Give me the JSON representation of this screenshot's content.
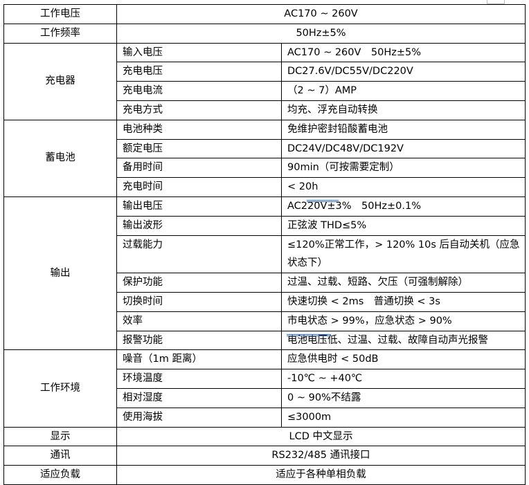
{
  "sections": [
    {
      "type": "row",
      "label": "工作电压",
      "value": "AC170 ~ 260V"
    },
    {
      "type": "row",
      "label": "工作频率",
      "value": "50Hz±5%"
    },
    {
      "type": "group",
      "label": "充电器",
      "items": [
        {
          "label": "输入电压",
          "value": "AC170 ~ 260V　50Hz±5%"
        },
        {
          "label": "充电电压",
          "value": "DC27.6V/DC55V/DC220V"
        },
        {
          "label": "充电电流",
          "value": "（2 ~ 7）AMP"
        },
        {
          "label": "充电方式",
          "value": "均充、浮充自动转换"
        }
      ]
    },
    {
      "type": "group",
      "label": "蓄电池",
      "items": [
        {
          "label": "电池种类",
          "value": "免维护密封铅酸蓄电池"
        },
        {
          "label": "额定电压",
          "value": "DC24V/DC48V/DC192V"
        },
        {
          "label": "备用时间",
          "value": "90min（可按需要定制）"
        },
        {
          "label": "充电时间",
          "value": "< 20h"
        }
      ]
    },
    {
      "type": "group",
      "label": "输出",
      "items": [
        {
          "label": "输出电压",
          "value": "AC220V±3%　50Hz±0.1%",
          "underline": "　50"
        },
        {
          "label": "输出波形",
          "value": "正弦波 THD≤5%"
        },
        {
          "label": "过载能力",
          "value": "≤120%正常工作，> 120% 10s 后自动关机（应急状态下）",
          "wrap": true
        },
        {
          "label": "保护功能",
          "value": "过温、过载、短路、欠压（可强制解除）"
        },
        {
          "label": "切换时间",
          "value": "快速切换 < 2ms　普通切换 < 3s"
        },
        {
          "label": "效率",
          "value": "市电状态 > 99%，应急状态 > 90%"
        },
        {
          "label": "报警功能",
          "value": "电池电压低、过温、过载、故障自动声光报警",
          "underline": "电池电压"
        }
      ]
    },
    {
      "type": "group",
      "label": "工作环境",
      "items": [
        {
          "label": "噪音（1m 距离）",
          "value": "应急供电时 < 50dB"
        },
        {
          "label": "环境温度",
          "value": "-10℃ ~ +40℃"
        },
        {
          "label": "相对湿度",
          "value": "0 ~ 90%不结露"
        },
        {
          "label": "使用海拔",
          "value": "≤3000m"
        }
      ]
    },
    {
      "type": "row",
      "label": "显示",
      "value": "LCD 中文显示"
    },
    {
      "type": "row",
      "label": "通讯",
      "value": "RS232/485 通讯接口"
    },
    {
      "type": "row",
      "label": "适应负载",
      "value": "适应于各种单相负载"
    }
  ]
}
